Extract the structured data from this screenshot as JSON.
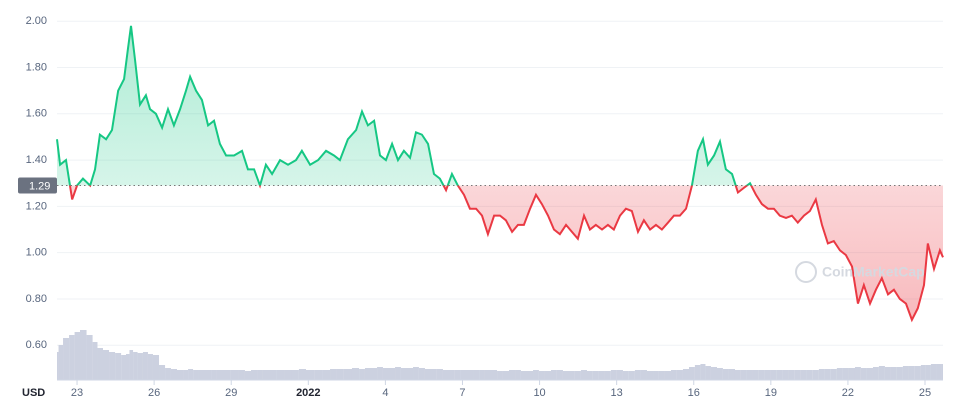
{
  "chart_data": {
    "type": "baseline-line",
    "x": [
      0.22,
      0.34,
      0.57,
      0.81,
      1.0,
      1.23,
      1.51,
      1.7,
      1.89,
      2.13,
      2.36,
      2.6,
      2.83,
      2.98,
      3.1,
      3.26,
      3.45,
      3.68,
      3.84,
      4.07,
      4.31,
      4.54,
      4.77,
      5.01,
      5.24,
      5.4,
      5.63,
      5.86,
      6.1,
      6.33,
      6.56,
      6.8,
      7.11,
      7.42,
      7.65,
      7.89,
      8.12,
      8.35,
      8.59,
      8.9,
      9.21,
      9.52,
      9.75,
      10.07,
      10.38,
      10.69,
      11.0,
      11.23,
      11.54,
      11.86,
      12.09,
      12.32,
      12.56,
      12.79,
      13.02,
      13.26,
      13.49,
      13.72,
      13.96,
      14.19,
      14.42,
      14.66,
      14.89,
      15.12,
      15.36,
      15.59,
      15.82,
      16.06,
      16.29,
      16.53,
      16.76,
      16.99,
      17.23,
      17.46,
      17.69,
      17.93,
      18.16,
      18.39,
      18.63,
      18.86,
      19.09,
      19.33,
      19.56,
      19.79,
      20.03,
      20.26,
      20.49,
      20.73,
      20.96,
      21.19,
      21.43,
      21.66,
      21.89,
      22.13,
      22.36,
      22.59,
      22.83,
      23.06,
      23.3,
      23.53,
      23.76,
      24.0,
      24.23,
      24.46,
      24.7,
      24.93,
      25.16,
      25.36,
      25.55,
      25.79,
      26.02,
      26.25,
      26.49,
      26.72,
      26.95,
      27.19,
      27.42,
      27.65,
      27.89,
      28.12,
      28.35,
      28.59,
      28.82,
      29.05,
      29.29,
      29.52,
      29.75,
      29.99,
      30.22,
      30.45,
      30.69,
      30.92,
      31.16,
      31.39,
      31.62,
      31.86,
      32.09,
      32.32,
      32.56,
      32.79,
      33.02,
      33.26,
      33.49,
      33.72,
      33.96,
      34.11,
      34.35,
      34.58,
      34.7
    ],
    "values": [
      1.49,
      1.38,
      1.4,
      1.23,
      1.29,
      1.32,
      1.29,
      1.36,
      1.51,
      1.49,
      1.53,
      1.7,
      1.75,
      1.88,
      1.98,
      1.83,
      1.64,
      1.68,
      1.62,
      1.6,
      1.54,
      1.62,
      1.55,
      1.62,
      1.7,
      1.76,
      1.7,
      1.66,
      1.55,
      1.57,
      1.47,
      1.42,
      1.42,
      1.44,
      1.36,
      1.36,
      1.29,
      1.38,
      1.34,
      1.4,
      1.38,
      1.4,
      1.44,
      1.38,
      1.4,
      1.44,
      1.42,
      1.4,
      1.49,
      1.53,
      1.61,
      1.55,
      1.57,
      1.42,
      1.4,
      1.47,
      1.4,
      1.44,
      1.41,
      1.52,
      1.51,
      1.47,
      1.34,
      1.32,
      1.27,
      1.34,
      1.29,
      1.25,
      1.19,
      1.19,
      1.16,
      1.08,
      1.16,
      1.16,
      1.14,
      1.09,
      1.12,
      1.12,
      1.19,
      1.25,
      1.21,
      1.16,
      1.1,
      1.08,
      1.12,
      1.09,
      1.06,
      1.16,
      1.1,
      1.12,
      1.1,
      1.12,
      1.1,
      1.16,
      1.19,
      1.18,
      1.09,
      1.14,
      1.1,
      1.12,
      1.1,
      1.13,
      1.16,
      1.16,
      1.19,
      1.29,
      1.44,
      1.49,
      1.38,
      1.42,
      1.48,
      1.36,
      1.34,
      1.26,
      1.28,
      1.3,
      1.25,
      1.21,
      1.19,
      1.19,
      1.16,
      1.15,
      1.16,
      1.13,
      1.16,
      1.18,
      1.23,
      1.12,
      1.04,
      1.05,
      1.01,
      0.99,
      0.94,
      0.78,
      0.86,
      0.78,
      0.84,
      0.89,
      0.82,
      0.84,
      0.8,
      0.78,
      0.71,
      0.76,
      0.86,
      1.04,
      0.93,
      1.01,
      0.98
    ],
    "volume": [
      28,
      35,
      42,
      45,
      48,
      50,
      45,
      38,
      32,
      30,
      28,
      27,
      25,
      26,
      30,
      28,
      27,
      28,
      26,
      25,
      15,
      12,
      11,
      10,
      10,
      11,
      10,
      10,
      10,
      10,
      10,
      10,
      10,
      10,
      9,
      10,
      10,
      10,
      10,
      10,
      10,
      10,
      11,
      10,
      10,
      10,
      11,
      11,
      11,
      12,
      11,
      12,
      12,
      13,
      12,
      12,
      13,
      12,
      12,
      13,
      12,
      11,
      11,
      11,
      10,
      10,
      10,
      10,
      10,
      10,
      10,
      10,
      10,
      9,
      9,
      10,
      10,
      9,
      9,
      10,
      9,
      9,
      10,
      10,
      9,
      9,
      9,
      10,
      9,
      9,
      9,
      9,
      10,
      10,
      9,
      9,
      10,
      10,
      9,
      9,
      9,
      9,
      10,
      10,
      11,
      13,
      15,
      16,
      14,
      13,
      12,
      11,
      11,
      10,
      10,
      10,
      10,
      10,
      10,
      10,
      10,
      10,
      10,
      10,
      10,
      10,
      10,
      11,
      11,
      11,
      12,
      12,
      12,
      13,
      12,
      12,
      13,
      14,
      13,
      13,
      13,
      14,
      14,
      14,
      15,
      15,
      16,
      16,
      16
    ],
    "volume_lim": [
      0,
      60
    ],
    "baseline": 1.29,
    "up_color": "#16c784",
    "down_color": "#ea3943",
    "volume_color": "#ccd1e0",
    "xlim": [
      0.22,
      34.7
    ],
    "xticks": [
      {
        "value": 1,
        "label": "23"
      },
      {
        "value": 4,
        "label": "26"
      },
      {
        "value": 7,
        "label": "29"
      },
      {
        "value": 10,
        "label": "2022"
      },
      {
        "value": 13,
        "label": "4"
      },
      {
        "value": 16,
        "label": "7"
      },
      {
        "value": 19,
        "label": "10"
      },
      {
        "value": 22,
        "label": "13"
      },
      {
        "value": 25,
        "label": "16"
      },
      {
        "value": 28,
        "label": "19"
      },
      {
        "value": 31,
        "label": "22"
      },
      {
        "value": 34,
        "label": "25"
      }
    ],
    "ylim": [
      0.45,
      2.07
    ],
    "yticks": [
      {
        "value": 0.6,
        "label": "0.60"
      },
      {
        "value": 0.8,
        "label": "0.80"
      },
      {
        "value": 1.0,
        "label": "1.00"
      },
      {
        "value": 1.2,
        "label": "1.20"
      },
      {
        "value": 1.4,
        "label": "1.40"
      },
      {
        "value": 1.6,
        "label": "1.60"
      },
      {
        "value": 1.8,
        "label": "1.80"
      },
      {
        "value": 2.0,
        "label": "2.00"
      }
    ],
    "y_unit": "USD",
    "watermark": "CoinMarketCap",
    "grid": true
  }
}
